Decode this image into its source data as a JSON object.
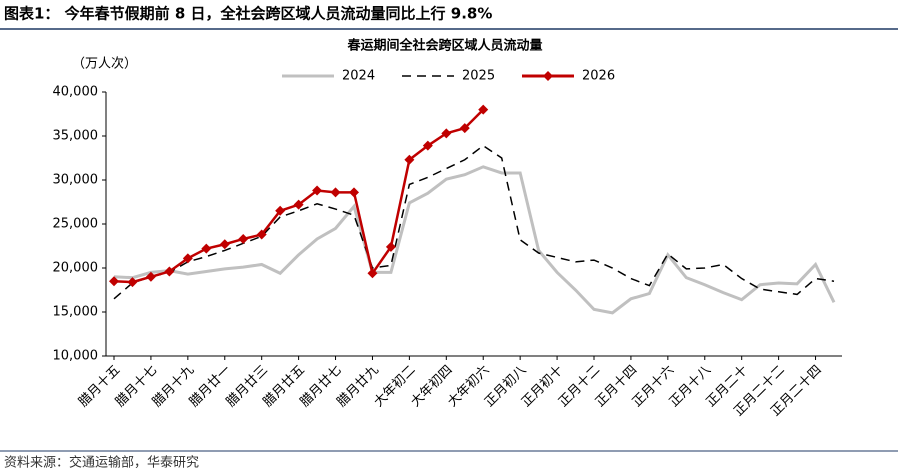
{
  "header": {
    "title": "图表1： 今年春节假期前 8 日，全社会跨区域人员流动量同比上行 9.8%"
  },
  "source": "资料来源：交通运输部，华泰研究",
  "chart_data": {
    "type": "line",
    "title": "春运期间全社会跨区域人员流动量",
    "y_label": "（万人次）",
    "categories": [
      "腊月十五",
      null,
      "腊月十七",
      null,
      "腊月十九",
      null,
      "腊月廿一",
      null,
      "腊月廿三",
      null,
      "腊月廿五",
      null,
      "腊月廿七",
      null,
      "腊月廿九",
      null,
      "大年初二",
      null,
      "大年初四",
      null,
      "大年初六",
      null,
      "正月初八",
      null,
      "正月初十",
      null,
      "正月十二",
      null,
      "正月十四",
      null,
      "正月十六",
      null,
      "正月十八",
      null,
      "正月二十",
      null,
      "正月二十二",
      null,
      "正月二十四",
      null
    ],
    "series": [
      {
        "name": "2024",
        "color": "#c0c0c0",
        "dash": false,
        "marker": null,
        "values": [
          19000,
          18900,
          19500,
          19700,
          19300,
          19600,
          19900,
          20100,
          20400,
          19400,
          21500,
          23300,
          24500,
          27000,
          19500,
          19500,
          27400,
          28500,
          30100,
          30600,
          31500,
          30800,
          30800,
          22000,
          19500,
          17500,
          15300,
          14900,
          16500,
          17100,
          21500,
          18900,
          18100,
          17200,
          16400,
          18100,
          18300,
          18200,
          20400,
          16100
        ]
      },
      {
        "name": "2025",
        "color": "#000000",
        "dash": true,
        "marker": null,
        "values": [
          16500,
          18300,
          19000,
          19500,
          20700,
          21300,
          22000,
          22800,
          23600,
          25800,
          26500,
          27300,
          26700,
          26000,
          20000,
          20300,
          29500,
          30300,
          31300,
          32300,
          33900,
          32500,
          23200,
          21700,
          21200,
          20700,
          20900,
          20000,
          18800,
          18000,
          21600,
          19900,
          20000,
          20400,
          18800,
          17600,
          17300,
          17000,
          18800,
          18500
        ]
      },
      {
        "name": "2026",
        "color": "#c00000",
        "dash": false,
        "marker": "diamond",
        "values": [
          18500,
          18400,
          19000,
          19600,
          21100,
          22200,
          22700,
          23300,
          23800,
          26500,
          27200,
          28800,
          28600,
          28600,
          19400,
          22400,
          32300,
          33900,
          35300,
          35900,
          38000,
          null,
          null,
          null,
          null,
          null,
          null,
          null,
          null,
          null,
          null,
          null,
          null,
          null,
          null,
          null,
          null,
          null,
          null,
          null
        ]
      }
    ],
    "ylim": [
      10000,
      40000
    ],
    "yticks": [
      {
        "value": 10000,
        "label": "10,000"
      },
      {
        "value": 15000,
        "label": "15,000"
      },
      {
        "value": 20000,
        "label": "20,000"
      },
      {
        "value": 25000,
        "label": "25,000"
      },
      {
        "value": 30000,
        "label": "30,000"
      },
      {
        "value": 35000,
        "label": "35,000"
      },
      {
        "value": 40000,
        "label": "40,000"
      }
    ],
    "grid": false,
    "legend": "top"
  }
}
